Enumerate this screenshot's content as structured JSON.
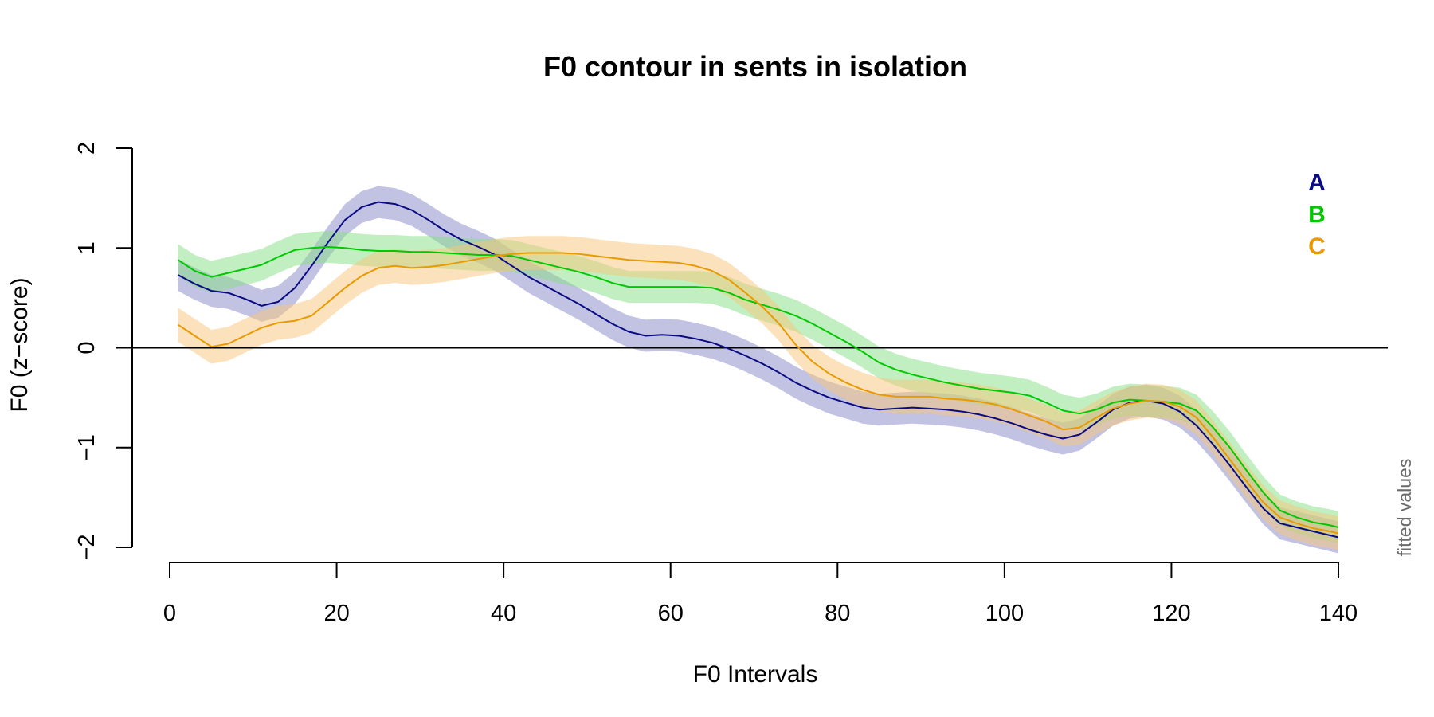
{
  "chart_data": {
    "type": "line",
    "title": "F0 contour in sents in isolation",
    "xlabel": "F0 Intervals",
    "ylabel": "F0 (z−score)",
    "xlim": [
      0,
      140
    ],
    "ylim": [
      -2,
      2
    ],
    "x_ticks": [
      0,
      20,
      40,
      60,
      80,
      100,
      120,
      140
    ],
    "y_ticks": [
      -2,
      -1,
      0,
      1,
      2
    ],
    "x_tick_labels": [
      "0",
      "20",
      "40",
      "60",
      "80",
      "100",
      "120",
      "140"
    ],
    "y_tick_labels": [
      "−2",
      "−1",
      "0",
      "1",
      "2"
    ],
    "reference_line": 0,
    "side_note": "fitted values",
    "legend_position": "top-right",
    "grid": false,
    "x": [
      1,
      3,
      5,
      7,
      9,
      11,
      13,
      15,
      17,
      19,
      21,
      23,
      25,
      27,
      29,
      31,
      33,
      35,
      37,
      39,
      41,
      43,
      45,
      47,
      49,
      51,
      53,
      55,
      57,
      59,
      61,
      63,
      65,
      67,
      69,
      71,
      73,
      75,
      77,
      79,
      81,
      83,
      85,
      87,
      89,
      91,
      93,
      95,
      97,
      99,
      101,
      103,
      105,
      107,
      109,
      111,
      113,
      115,
      117,
      119,
      121,
      123,
      125,
      127,
      129,
      131,
      133,
      135,
      137,
      139,
      140
    ],
    "series": [
      {
        "name": "A",
        "color": "#0a0a82",
        "band_color": "#8585c8",
        "band_half_width": 0.16,
        "values": [
          0.73,
          0.64,
          0.57,
          0.55,
          0.49,
          0.42,
          0.46,
          0.6,
          0.82,
          1.06,
          1.28,
          1.41,
          1.46,
          1.44,
          1.38,
          1.28,
          1.17,
          1.08,
          1.01,
          0.93,
          0.82,
          0.71,
          0.62,
          0.53,
          0.44,
          0.34,
          0.24,
          0.16,
          0.12,
          0.13,
          0.12,
          0.09,
          0.05,
          -0.01,
          -0.08,
          -0.16,
          -0.25,
          -0.35,
          -0.43,
          -0.5,
          -0.55,
          -0.6,
          -0.62,
          -0.61,
          -0.6,
          -0.61,
          -0.62,
          -0.64,
          -0.67,
          -0.71,
          -0.76,
          -0.82,
          -0.87,
          -0.91,
          -0.87,
          -0.75,
          -0.62,
          -0.55,
          -0.53,
          -0.56,
          -0.64,
          -0.78,
          -0.97,
          -1.18,
          -1.4,
          -1.61,
          -1.76,
          -1.8,
          -1.84,
          -1.88,
          -1.9
        ]
      },
      {
        "name": "B",
        "color": "#00c800",
        "band_color": "#85e085",
        "band_half_width": 0.16,
        "values": [
          0.88,
          0.77,
          0.71,
          0.75,
          0.79,
          0.83,
          0.91,
          0.98,
          1.0,
          1.01,
          1.0,
          0.98,
          0.97,
          0.97,
          0.96,
          0.96,
          0.95,
          0.94,
          0.93,
          0.93,
          0.92,
          0.88,
          0.84,
          0.8,
          0.76,
          0.71,
          0.65,
          0.61,
          0.61,
          0.61,
          0.61,
          0.61,
          0.6,
          0.55,
          0.48,
          0.43,
          0.38,
          0.32,
          0.24,
          0.15,
          0.06,
          -0.04,
          -0.15,
          -0.22,
          -0.27,
          -0.31,
          -0.35,
          -0.38,
          -0.41,
          -0.43,
          -0.45,
          -0.48,
          -0.55,
          -0.63,
          -0.66,
          -0.62,
          -0.55,
          -0.52,
          -0.53,
          -0.54,
          -0.56,
          -0.63,
          -0.8,
          -1.0,
          -1.23,
          -1.45,
          -1.63,
          -1.7,
          -1.75,
          -1.78,
          -1.8
        ]
      },
      {
        "name": "C",
        "color": "#e89a00",
        "band_color": "#f8c67a",
        "band_half_width": 0.17,
        "values": [
          0.23,
          0.12,
          0.01,
          0.04,
          0.12,
          0.2,
          0.25,
          0.27,
          0.32,
          0.46,
          0.6,
          0.72,
          0.8,
          0.82,
          0.8,
          0.81,
          0.83,
          0.86,
          0.89,
          0.92,
          0.94,
          0.95,
          0.95,
          0.95,
          0.94,
          0.92,
          0.9,
          0.88,
          0.87,
          0.86,
          0.85,
          0.82,
          0.77,
          0.68,
          0.55,
          0.41,
          0.24,
          0.03,
          -0.14,
          -0.26,
          -0.35,
          -0.42,
          -0.47,
          -0.49,
          -0.49,
          -0.49,
          -0.51,
          -0.52,
          -0.54,
          -0.57,
          -0.62,
          -0.68,
          -0.74,
          -0.82,
          -0.8,
          -0.7,
          -0.61,
          -0.56,
          -0.53,
          -0.54,
          -0.59,
          -0.7,
          -0.9,
          -1.12,
          -1.34,
          -1.55,
          -1.7,
          -1.76,
          -1.81,
          -1.84,
          -1.86
        ]
      }
    ]
  }
}
